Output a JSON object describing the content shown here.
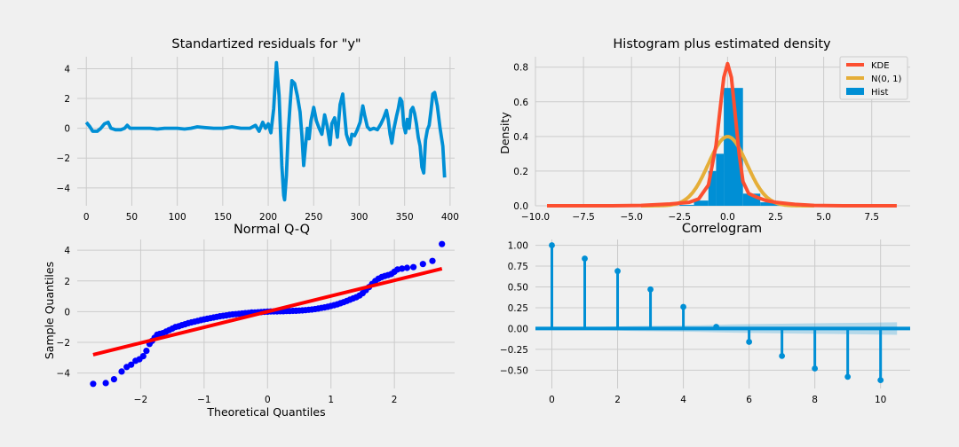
{
  "chart_data": [
    {
      "type": "line",
      "title": "Standartized residuals for \"y\"",
      "xlabel": "",
      "ylabel": "",
      "xlim": [
        -10,
        405
      ],
      "ylim": [
        -5.2,
        4.8
      ],
      "xticks": [
        0,
        50,
        100,
        150,
        200,
        250,
        300,
        350,
        400
      ],
      "yticks": [
        -4,
        -2,
        0,
        2,
        4
      ],
      "color": "#008fd5",
      "points": [
        [
          0,
          0.4
        ],
        [
          4,
          0.1
        ],
        [
          7,
          -0.2
        ],
        [
          12,
          -0.2
        ],
        [
          16,
          0.0
        ],
        [
          20,
          0.3
        ],
        [
          24,
          0.4
        ],
        [
          27,
          0.0
        ],
        [
          32,
          -0.1
        ],
        [
          38,
          -0.1
        ],
        [
          42,
          0.0
        ],
        [
          45,
          0.2
        ],
        [
          48,
          0.0
        ],
        [
          55,
          0.0
        ],
        [
          62,
          0.0
        ],
        [
          70,
          0.0
        ],
        [
          78,
          -0.05
        ],
        [
          86,
          0.0
        ],
        [
          94,
          0.0
        ],
        [
          100,
          0.0
        ],
        [
          108,
          -0.05
        ],
        [
          115,
          0.0
        ],
        [
          122,
          0.1
        ],
        [
          130,
          0.05
        ],
        [
          140,
          0.0
        ],
        [
          150,
          0.0
        ],
        [
          160,
          0.1
        ],
        [
          170,
          0.0
        ],
        [
          180,
          0.0
        ],
        [
          186,
          0.2
        ],
        [
          190,
          -0.2
        ],
        [
          194,
          0.4
        ],
        [
          197,
          0.0
        ],
        [
          200,
          0.3
        ],
        [
          203,
          -0.3
        ],
        [
          206,
          1.3
        ],
        [
          209,
          4.4
        ],
        [
          212,
          2.2
        ],
        [
          215,
          -2.5
        ],
        [
          217,
          -4.5
        ],
        [
          218,
          -4.8
        ],
        [
          220,
          -3.2
        ],
        [
          222,
          -0.3
        ],
        [
          224,
          1.5
        ],
        [
          226,
          3.2
        ],
        [
          229,
          3.0
        ],
        [
          232,
          2.2
        ],
        [
          235,
          1.1
        ],
        [
          237,
          -0.5
        ],
        [
          239,
          -2.5
        ],
        [
          241,
          -1.2
        ],
        [
          243,
          0.0
        ],
        [
          245,
          -0.7
        ],
        [
          247,
          0.5
        ],
        [
          250,
          1.4
        ],
        [
          253,
          0.5
        ],
        [
          256,
          0.0
        ],
        [
          259,
          -0.4
        ],
        [
          262,
          0.9
        ],
        [
          265,
          0.1
        ],
        [
          268,
          -1.1
        ],
        [
          270,
          0.3
        ],
        [
          273,
          0.7
        ],
        [
          276,
          -0.6
        ],
        [
          279,
          1.6
        ],
        [
          282,
          2.3
        ],
        [
          284,
          0.9
        ],
        [
          286,
          -0.4
        ],
        [
          288,
          -0.8
        ],
        [
          290,
          -1.1
        ],
        [
          292,
          -0.4
        ],
        [
          295,
          -0.5
        ],
        [
          298,
          -0.1
        ],
        [
          301,
          0.4
        ],
        [
          304,
          1.5
        ],
        [
          306,
          0.9
        ],
        [
          309,
          0.1
        ],
        [
          312,
          -0.1
        ],
        [
          316,
          0.0
        ],
        [
          320,
          -0.1
        ],
        [
          324,
          0.3
        ],
        [
          327,
          0.7
        ],
        [
          330,
          1.2
        ],
        [
          332,
          0.6
        ],
        [
          334,
          -0.4
        ],
        [
          336,
          -1.0
        ],
        [
          338,
          -0.1
        ],
        [
          341,
          0.8
        ],
        [
          343,
          1.3
        ],
        [
          345,
          2.0
        ],
        [
          347,
          1.8
        ],
        [
          349,
          0.2
        ],
        [
          351,
          -0.3
        ],
        [
          353,
          0.6
        ],
        [
          355,
          0.0
        ],
        [
          357,
          1.2
        ],
        [
          359,
          1.4
        ],
        [
          361,
          1.0
        ],
        [
          363,
          0.3
        ],
        [
          365,
          -0.6
        ],
        [
          367,
          -1.2
        ],
        [
          369,
          -2.6
        ],
        [
          371,
          -3.0
        ],
        [
          373,
          -0.8
        ],
        [
          375,
          -0.1
        ],
        [
          377,
          0.2
        ],
        [
          379,
          1.2
        ],
        [
          381,
          2.3
        ],
        [
          383,
          2.4
        ],
        [
          386,
          1.5
        ],
        [
          389,
          0.0
        ],
        [
          392,
          -1.2
        ],
        [
          394,
          -3.3
        ]
      ]
    },
    {
      "type": "histogram",
      "title": "Histogram plus estimated density",
      "xlabel": "",
      "ylabel": "Density",
      "xlim": [
        -10,
        9.5
      ],
      "ylim": [
        0,
        0.86
      ],
      "xticks": [
        -10.0,
        -7.5,
        -5.0,
        -2.5,
        0.0,
        2.5,
        5.0,
        7.5
      ],
      "yticks": [
        0.0,
        0.2,
        0.4,
        0.6,
        0.8
      ],
      "bins": [
        {
          "x0": -2.5,
          "x1": -1.75,
          "density": 0.005
        },
        {
          "x0": -1.75,
          "x1": -1.0,
          "density": 0.03
        },
        {
          "x0": -1.0,
          "x1": -0.6,
          "density": 0.2
        },
        {
          "x0": -0.6,
          "x1": -0.2,
          "density": 0.3
        },
        {
          "x0": -0.2,
          "x1": 0.8,
          "density": 0.68
        },
        {
          "x0": 0.8,
          "x1": 1.7,
          "density": 0.07
        },
        {
          "x0": 1.7,
          "x1": 2.6,
          "density": 0.02
        },
        {
          "x0": 2.6,
          "x1": 3.5,
          "density": 0.005
        }
      ],
      "kde": [
        [
          -9.4,
          0.0
        ],
        [
          -6.0,
          0.0
        ],
        [
          -4.5,
          0.002
        ],
        [
          -3.0,
          0.01
        ],
        [
          -2.0,
          0.02
        ],
        [
          -1.5,
          0.04
        ],
        [
          -1.0,
          0.12
        ],
        [
          -0.6,
          0.35
        ],
        [
          -0.4,
          0.55
        ],
        [
          -0.2,
          0.74
        ],
        [
          0.0,
          0.82
        ],
        [
          0.2,
          0.74
        ],
        [
          0.4,
          0.52
        ],
        [
          0.6,
          0.3
        ],
        [
          0.8,
          0.14
        ],
        [
          1.1,
          0.07
        ],
        [
          1.5,
          0.05
        ],
        [
          2.0,
          0.03
        ],
        [
          2.5,
          0.02
        ],
        [
          3.5,
          0.008
        ],
        [
          4.5,
          0.002
        ],
        [
          6.0,
          0.0
        ],
        [
          8.8,
          0.0
        ]
      ],
      "series": [
        {
          "name": "KDE",
          "color": "#fc4f30"
        },
        {
          "name": "N(0, 1)",
          "color": "#e5ae38"
        },
        {
          "name": "Hist",
          "color": "#008fd5"
        }
      ],
      "legend": "top-right"
    },
    {
      "type": "scatter",
      "title": "Normal Q-Q",
      "xlabel": "Theoretical Quantiles",
      "ylabel": "Sample Quantiles",
      "xlim": [
        -3.0,
        2.95
      ],
      "ylim": [
        -5.0,
        4.7
      ],
      "xticks": [
        -2,
        -1,
        0,
        1,
        2
      ],
      "yticks": [
        -4,
        -2,
        0,
        2,
        4
      ],
      "line": [
        [
          -2.75,
          -2.8
        ],
        [
          2.75,
          2.8
        ]
      ],
      "point_color": "#0000ff",
      "line_color": "#ff0000",
      "points": [
        [
          -2.75,
          -4.7
        ],
        [
          -2.55,
          -4.65
        ],
        [
          -2.42,
          -4.4
        ],
        [
          -2.3,
          -3.9
        ],
        [
          -2.22,
          -3.6
        ],
        [
          -2.15,
          -3.45
        ],
        [
          -2.08,
          -3.2
        ],
        [
          -2.02,
          -3.1
        ],
        [
          -1.96,
          -2.9
        ],
        [
          -1.91,
          -2.55
        ],
        [
          -1.86,
          -2.1
        ],
        [
          -1.82,
          -1.9
        ],
        [
          -1.78,
          -1.7
        ],
        [
          -1.74,
          -1.5
        ],
        [
          -1.7,
          -1.45
        ],
        [
          -1.65,
          -1.4
        ],
        [
          -1.6,
          -1.3
        ],
        [
          -1.55,
          -1.2
        ],
        [
          -1.5,
          -1.1
        ],
        [
          -1.45,
          -1.0
        ],
        [
          -1.4,
          -0.95
        ],
        [
          -1.35,
          -0.88
        ],
        [
          -1.3,
          -0.82
        ],
        [
          -1.25,
          -0.75
        ],
        [
          -1.2,
          -0.7
        ],
        [
          -1.15,
          -0.65
        ],
        [
          -1.1,
          -0.6
        ],
        [
          -1.05,
          -0.55
        ],
        [
          -1.0,
          -0.5
        ],
        [
          -0.95,
          -0.46
        ],
        [
          -0.9,
          -0.42
        ],
        [
          -0.85,
          -0.38
        ],
        [
          -0.8,
          -0.34
        ],
        [
          -0.75,
          -0.3
        ],
        [
          -0.7,
          -0.27
        ],
        [
          -0.65,
          -0.24
        ],
        [
          -0.6,
          -0.21
        ],
        [
          -0.55,
          -0.18
        ],
        [
          -0.5,
          -0.16
        ],
        [
          -0.45,
          -0.14
        ],
        [
          -0.4,
          -0.12
        ],
        [
          -0.35,
          -0.1
        ],
        [
          -0.3,
          -0.08
        ],
        [
          -0.25,
          -0.06
        ],
        [
          -0.2,
          -0.05
        ],
        [
          -0.15,
          -0.04
        ],
        [
          -0.1,
          -0.03
        ],
        [
          -0.05,
          -0.01
        ],
        [
          0.0,
          0.0
        ],
        [
          0.05,
          0.01
        ],
        [
          0.1,
          0.02
        ],
        [
          0.15,
          0.02
        ],
        [
          0.2,
          0.03
        ],
        [
          0.25,
          0.03
        ],
        [
          0.3,
          0.04
        ],
        [
          0.35,
          0.04
        ],
        [
          0.4,
          0.05
        ],
        [
          0.45,
          0.06
        ],
        [
          0.5,
          0.07
        ],
        [
          0.55,
          0.08
        ],
        [
          0.6,
          0.1
        ],
        [
          0.65,
          0.12
        ],
        [
          0.7,
          0.14
        ],
        [
          0.75,
          0.17
        ],
        [
          0.8,
          0.2
        ],
        [
          0.85,
          0.24
        ],
        [
          0.9,
          0.28
        ],
        [
          0.95,
          0.32
        ],
        [
          1.0,
          0.37
        ],
        [
          1.05,
          0.42
        ],
        [
          1.1,
          0.48
        ],
        [
          1.15,
          0.55
        ],
        [
          1.2,
          0.62
        ],
        [
          1.25,
          0.7
        ],
        [
          1.3,
          0.78
        ],
        [
          1.35,
          0.86
        ],
        [
          1.4,
          0.94
        ],
        [
          1.45,
          1.05
        ],
        [
          1.5,
          1.2
        ],
        [
          1.55,
          1.4
        ],
        [
          1.6,
          1.6
        ],
        [
          1.65,
          1.8
        ],
        [
          1.7,
          2.0
        ],
        [
          1.75,
          2.15
        ],
        [
          1.8,
          2.25
        ],
        [
          1.85,
          2.32
        ],
        [
          1.9,
          2.38
        ],
        [
          1.95,
          2.45
        ],
        [
          2.0,
          2.6
        ],
        [
          2.05,
          2.75
        ],
        [
          2.12,
          2.8
        ],
        [
          2.2,
          2.85
        ],
        [
          2.3,
          2.9
        ],
        [
          2.45,
          3.1
        ],
        [
          2.6,
          3.3
        ],
        [
          2.75,
          4.4
        ]
      ]
    },
    {
      "type": "stem",
      "title": "Correlogram",
      "xlabel": "",
      "ylabel": "",
      "xlim": [
        -0.5,
        10.9
      ],
      "ylim": [
        -0.72,
        1.07
      ],
      "xticks": [
        0,
        2,
        4,
        6,
        8,
        10
      ],
      "yticks": [
        1.0,
        0.75,
        0.5,
        0.25,
        0.0,
        -0.25,
        -0.5
      ],
      "lags": [
        0,
        1,
        2,
        3,
        4,
        5,
        6,
        7,
        8,
        9,
        10
      ],
      "values": [
        1.0,
        0.84,
        0.69,
        0.47,
        0.26,
        0.02,
        -0.16,
        -0.33,
        -0.48,
        -0.58,
        -0.62
      ],
      "confint": [
        [
          0.5,
          0.01
        ],
        [
          1.5,
          0.02
        ],
        [
          2.5,
          0.03
        ],
        [
          3.5,
          0.035
        ],
        [
          4.5,
          0.04
        ],
        [
          5.5,
          0.05
        ],
        [
          6.5,
          0.055
        ],
        [
          7.5,
          0.06
        ],
        [
          8.5,
          0.065
        ],
        [
          9.5,
          0.07
        ],
        [
          10.5,
          0.075
        ]
      ],
      "color": "#008fd5"
    }
  ]
}
